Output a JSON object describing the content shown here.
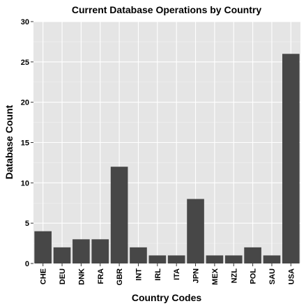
{
  "chart_data": {
    "type": "bar",
    "title": "Current Database Operations by Country",
    "xlabel": "Country Codes",
    "ylabel": "Database Count",
    "categories": [
      "CHE",
      "DEU",
      "DNK",
      "FRA",
      "GBR",
      "INT",
      "IRL",
      "ITA",
      "JPN",
      "MEX",
      "NZL",
      "POL",
      "SAU",
      "USA"
    ],
    "values": [
      4,
      2,
      3,
      3,
      12,
      2,
      1,
      1,
      8,
      1,
      1,
      2,
      1,
      26
    ],
    "ylim": [
      0,
      30
    ],
    "yticks": [
      0,
      5,
      10,
      15,
      20,
      25,
      30
    ],
    "grid": true,
    "bar_color": "#474747",
    "panel_background": "#e5e5e5"
  }
}
